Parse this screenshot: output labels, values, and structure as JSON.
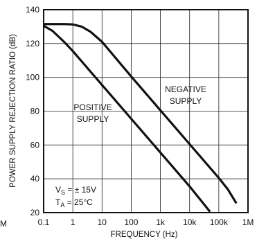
{
  "chart_data": {
    "type": "line",
    "title": "",
    "xlabel": "FREQUENCY (Hz)",
    "ylabel": "POWER SUPPLY REJECTION RATIO (dB)",
    "xscale": "log",
    "xlim": [
      0.1,
      1000000
    ],
    "ylim": [
      20,
      140
    ],
    "grid": true,
    "x_ticks": [
      {
        "value": 0.1,
        "label": "0.1"
      },
      {
        "value": 1,
        "label": "1"
      },
      {
        "value": 10,
        "label": "10"
      },
      {
        "value": 100,
        "label": "100"
      },
      {
        "value": 1000,
        "label": "1k"
      },
      {
        "value": 10000,
        "label": "10k"
      },
      {
        "value": 100000,
        "label": "100k"
      },
      {
        "value": 1000000,
        "label": "1M"
      }
    ],
    "left_edge_label": "M",
    "y_ticks": [
      {
        "value": 20,
        "label": "20"
      },
      {
        "value": 40,
        "label": "40"
      },
      {
        "value": 60,
        "label": "60"
      },
      {
        "value": 80,
        "label": "80"
      },
      {
        "value": 100,
        "label": "100"
      },
      {
        "value": 120,
        "label": "120"
      },
      {
        "value": 140,
        "label": "140"
      }
    ],
    "series": [
      {
        "name": "NEGATIVE SUPPLY",
        "points": [
          [
            0.1,
            131.5
          ],
          [
            0.5,
            131.5
          ],
          [
            1,
            131.3
          ],
          [
            2,
            130
          ],
          [
            4,
            127
          ],
          [
            10,
            121
          ],
          [
            100,
            100.5
          ],
          [
            1000,
            80.5
          ],
          [
            10000,
            60.5
          ],
          [
            100000,
            40.5
          ],
          [
            200000,
            34
          ],
          [
            400000,
            25.5
          ]
        ]
      },
      {
        "name": "POSITIVE SUPPLY",
        "points": [
          [
            0.1,
            130.5
          ],
          [
            0.2,
            127.5
          ],
          [
            0.5,
            121
          ],
          [
            1,
            115.5
          ],
          [
            10,
            95.5
          ],
          [
            100,
            75.5
          ],
          [
            1000,
            55.5
          ],
          [
            10000,
            35.5
          ],
          [
            50000,
            20.5
          ]
        ]
      }
    ],
    "annotations": {
      "negative_line1": "NEGATIVE",
      "negative_line2": "SUPPLY",
      "positive_line1": "POSITIVE",
      "positive_line2": "SUPPLY",
      "vs_text": "V",
      "vs_sub": "S",
      "vs_value": " = ± 15V",
      "ta_text": "T",
      "ta_sub": "A",
      "ta_value": " = 25°C"
    },
    "colors": {
      "line": "#111111",
      "grid": "#222222",
      "background": "#ffffff"
    }
  }
}
